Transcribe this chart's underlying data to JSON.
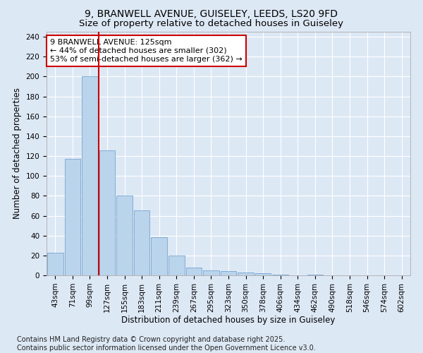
{
  "title_line1": "9, BRANWELL AVENUE, GUISELEY, LEEDS, LS20 9FD",
  "title_line2": "Size of property relative to detached houses in Guiseley",
  "xlabel": "Distribution of detached houses by size in Guiseley",
  "ylabel": "Number of detached properties",
  "categories": [
    "43sqm",
    "71sqm",
    "99sqm",
    "127sqm",
    "155sqm",
    "183sqm",
    "211sqm",
    "239sqm",
    "267sqm",
    "295sqm",
    "323sqm",
    "350sqm",
    "378sqm",
    "406sqm",
    "434sqm",
    "462sqm",
    "490sqm",
    "518sqm",
    "546sqm",
    "574sqm",
    "602sqm"
  ],
  "values": [
    23,
    117,
    200,
    126,
    80,
    65,
    38,
    20,
    8,
    5,
    4,
    3,
    2,
    1,
    0,
    1,
    0,
    0,
    0,
    0,
    0
  ],
  "bar_color": "#bad4eb",
  "bar_edge_color": "#6699cc",
  "vline_x_index": 3,
  "vline_color": "#cc0000",
  "annotation_text": "9 BRANWELL AVENUE: 125sqm\n← 44% of detached houses are smaller (302)\n53% of semi-detached houses are larger (362) →",
  "annotation_box_color": "white",
  "annotation_box_edge_color": "#cc0000",
  "ylim": [
    0,
    245
  ],
  "yticks": [
    0,
    20,
    40,
    60,
    80,
    100,
    120,
    140,
    160,
    180,
    200,
    220,
    240
  ],
  "background_color": "#dde8f5",
  "plot_bg_color": "#dde8f5",
  "footer_text": "Contains HM Land Registry data © Crown copyright and database right 2025.\nContains public sector information licensed under the Open Government Licence v3.0.",
  "title_fontsize": 10,
  "subtitle_fontsize": 9.5,
  "axis_label_fontsize": 8.5,
  "tick_fontsize": 7.5,
  "annotation_fontsize": 8,
  "footer_fontsize": 7
}
